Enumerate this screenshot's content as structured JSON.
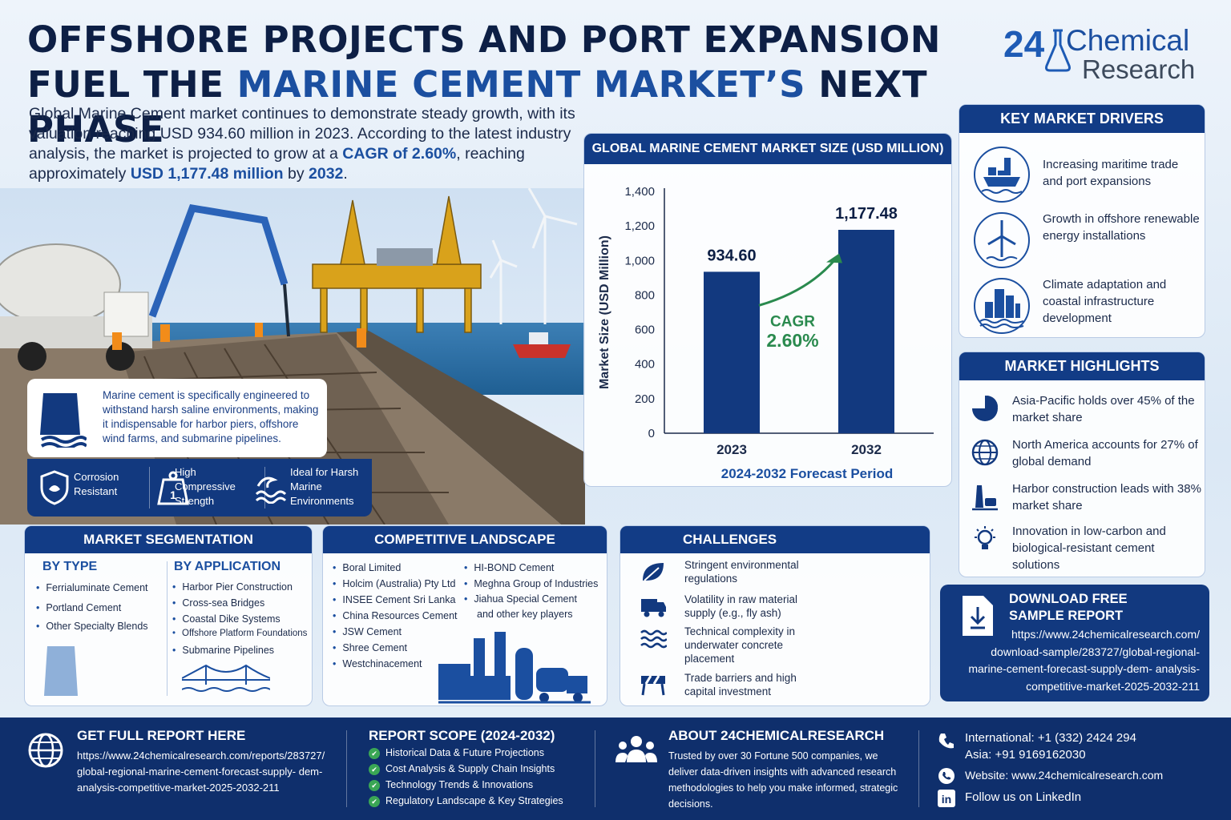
{
  "header": {
    "title_line1": "OFFSHORE PROJECTS AND PORT EXPANSION",
    "title_line2_a": "FUEL THE ",
    "title_line2_hl": "MARINE CEMENT MARKET’S",
    "title_line2_b": " NEXT PHASE",
    "intro_a": "Global Marine Cement market continues to demonstrate steady growth, with its valuation reaching USD 934.60 million in 2023. According to the latest industry analysis, the market is projected to grow at a ",
    "intro_cagr": "CAGR of 2.60%",
    "intro_b": ", reaching approximately ",
    "intro_usd": "USD 1,177.48 million",
    "intro_c": " by ",
    "intro_year": "2032",
    "intro_d": "."
  },
  "logo": {
    "number": "24",
    "word1": "Chemical",
    "word2": "Research"
  },
  "note": {
    "text": "Marine cement is specifically engineered to withstand harsh saline environments, making it indispensable for harbor piers, offshore wind farms, and submarine pipelines."
  },
  "features": [
    {
      "label": "Corrosion Resistant",
      "icon": "shield-icon"
    },
    {
      "label": "High Compressive Strength",
      "icon": "weight-icon"
    },
    {
      "label": "Ideal for Harsh Marine Environments",
      "icon": "wave-icon"
    }
  ],
  "chart_data": {
    "type": "bar",
    "title": "GLOBAL MARINE CEMENT MARKET SIZE (USD MILLION)",
    "categories": [
      "2023",
      "2032"
    ],
    "values": [
      934.6,
      1177.48
    ],
    "value_labels": [
      "934.60",
      "1,177.48"
    ],
    "ylabel": "Market Size (USD Million)",
    "xlabel": "2024-2032 Forecast Period",
    "ylim": [
      0,
      1400
    ],
    "yticks": [
      "0",
      "200",
      "400",
      "600",
      "800",
      "1,000",
      "1,200",
      "1,400"
    ],
    "annotation_line1": "CAGR",
    "annotation_line2": "2.60%",
    "bar_color": "#12397f",
    "accent_color": "#2a8a4e",
    "grid": false
  },
  "drivers": {
    "title": "KEY MARKET DRIVERS",
    "items": [
      {
        "text": "Increasing maritime trade and port expansions",
        "icon": "port-icon"
      },
      {
        "text": "Growth in offshore renewable energy installations",
        "icon": "wind-turbine-icon"
      },
      {
        "text": "Climate adaptation and coastal infrastructure development",
        "icon": "city-icon"
      }
    ]
  },
  "highlights": {
    "title": "MARKET HIGHLIGHTS",
    "items": [
      {
        "text": "Asia-Pacific holds over 45% of the market share",
        "icon": "pie-chart-icon"
      },
      {
        "text": "North America accounts for 27% of global demand",
        "icon": "globe-icon"
      },
      {
        "text": "Harbor construction leads with 38% market share",
        "icon": "lighthouse-icon"
      },
      {
        "text": "Innovation in low-carbon and biological-resistant cement solutions",
        "icon": "lightbulb-icon"
      }
    ]
  },
  "download": {
    "title_line1": "DOWNLOAD FREE",
    "title_line2": "SAMPLE REPORT",
    "url": "https://www.24chemicalresearch.com/ download-sample/283727/global-regional- marine-cement-forecast-supply-dem- analysis-competitive-market-2025-2032-211"
  },
  "segmentation": {
    "title": "MARKET SEGMENTATION",
    "by_type_label": "BY TYPE",
    "by_type": [
      "Ferrialuminate Cement",
      "Portland Cement",
      "Other Specialty Blends"
    ],
    "by_app_label": "BY APPLICATION",
    "by_app": [
      "Harbor Pier Construction",
      "Cross-sea Bridges",
      "Coastal Dike Systems",
      "Offshore Platform Foundations",
      "Submarine Pipelines"
    ]
  },
  "competitive": {
    "title": "COMPETITIVE LANDSCAPE",
    "col1": [
      "Boral Limited",
      "Holcim (Australia) Pty Ltd",
      "INSEE Cement Sri Lanka",
      "China Resources Cement",
      "JSW Cement",
      "Shree Cement",
      "Westchinacement"
    ],
    "col2": [
      "HI-BOND Cement",
      "Meghna Group of Industries",
      "Jiahua Special Cement"
    ],
    "col2_extra": "and other key players"
  },
  "challenges": {
    "title": "CHALLENGES",
    "items": [
      {
        "text": "Stringent environmental regulations",
        "icon": "leaf-icon"
      },
      {
        "text": "Volatility in raw material supply (e.g., fly ash)",
        "icon": "truck-icon"
      },
      {
        "text": "Technical complexity in underwater concrete placement",
        "icon": "water-icon"
      },
      {
        "text": "Trade barriers and high capital investment",
        "icon": "barrier-icon"
      }
    ]
  },
  "footer": {
    "report_title": "GET FULL REPORT HERE",
    "report_url": "https://www.24chemicalresearch.com/reports/283727/ global-regional-marine-cement-forecast-supply- dem-analysis-competitive-market-2025-2032-211",
    "scope_title": "REPORT SCOPE (2024-2032)",
    "scope_items": [
      "Historical Data & Future Projections",
      "Cost Analysis & Supply Chain Insights",
      "Technology Trends & Innovations",
      "Regulatory Landscape & Key Strategies"
    ],
    "about_title": "ABOUT 24CHEMICALRESEARCH",
    "about_text": "Trusted by over 30 Fortune 500 companies, we deliver data-driven insights with advanced research methodologies to help you make informed, strategic decisions.",
    "phone_intl": "International: +1 (332) 2424 294",
    "phone_asia": "Asia: +91 9169162030",
    "website": "Website: www.24chemicalresearch.com",
    "linkedin": "Follow us on LinkedIn"
  }
}
